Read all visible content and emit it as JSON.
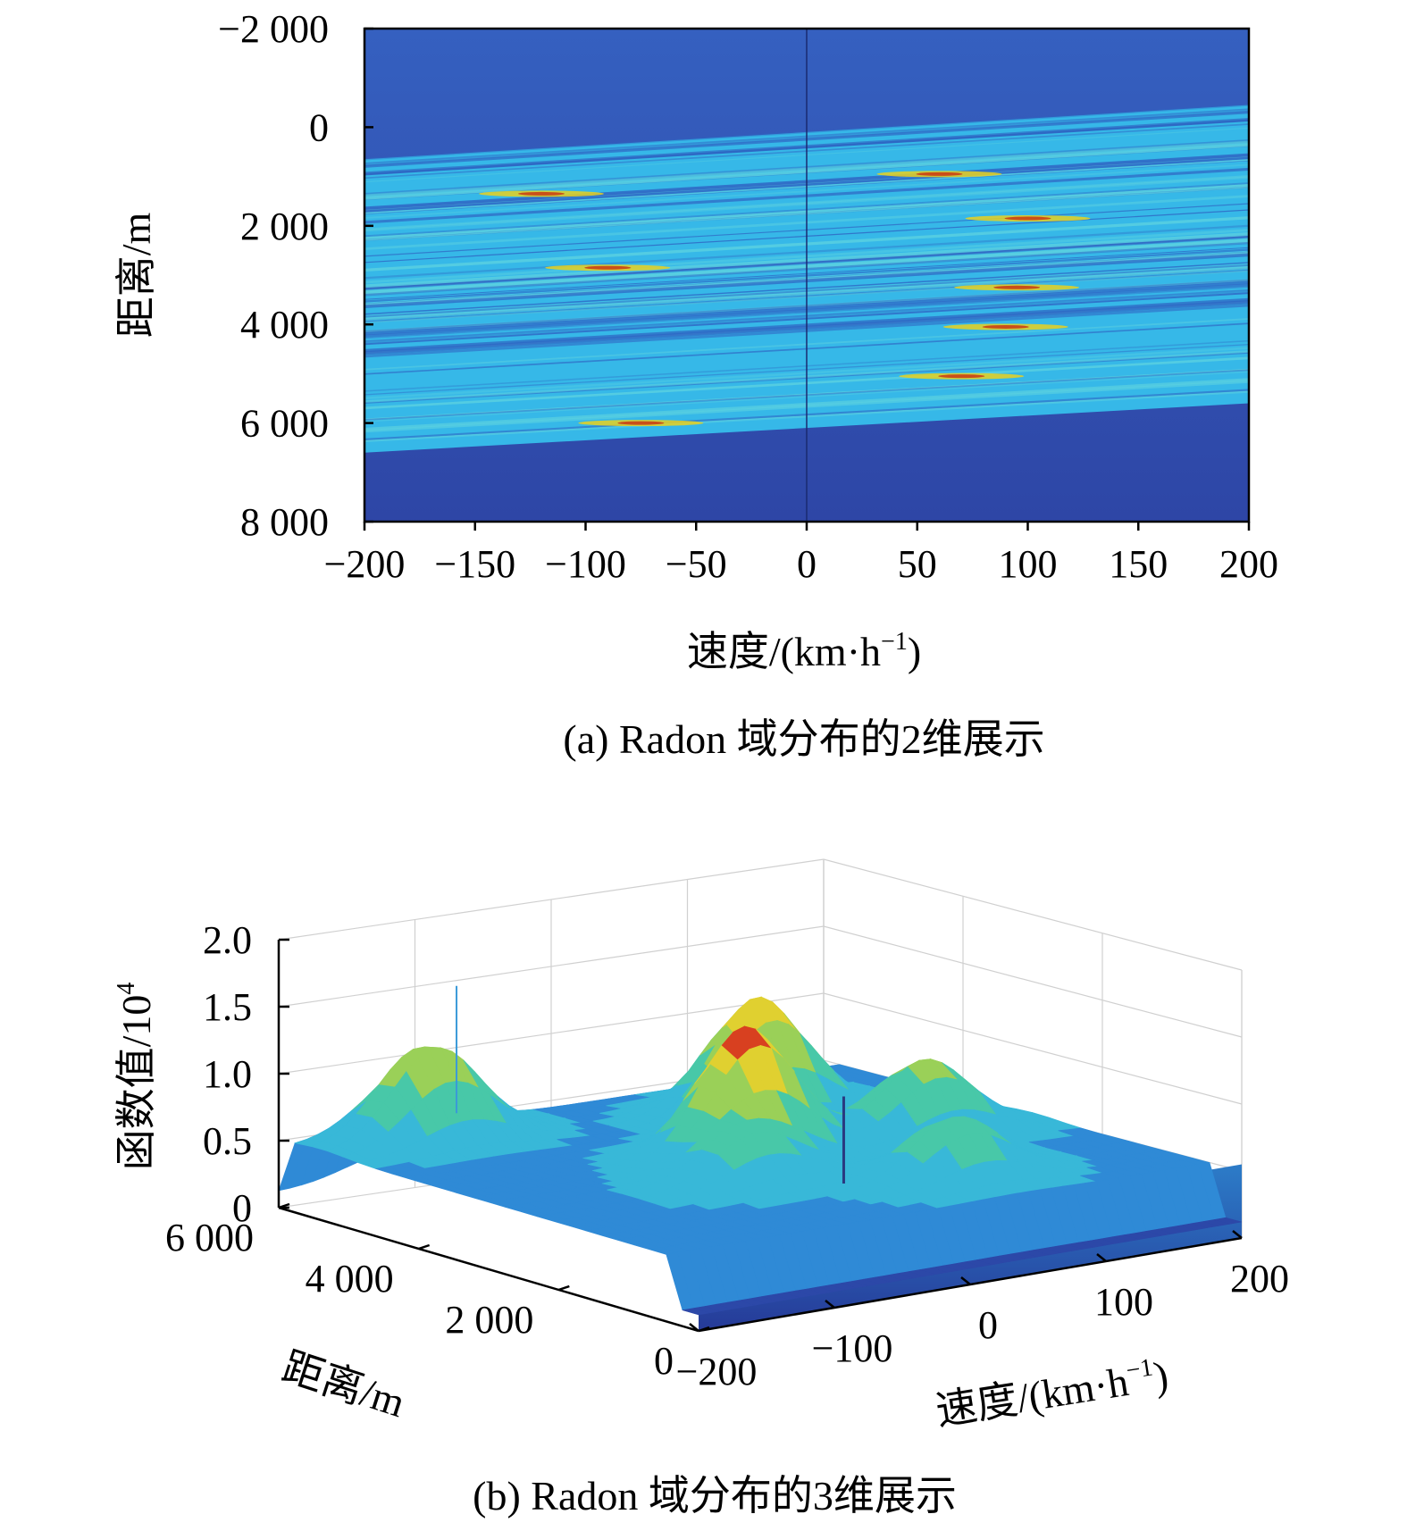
{
  "chart_data": [
    {
      "type": "heatmap",
      "caption": "(a) Radon 域分布的2维展示",
      "xlabel": "速度/(km·h",
      "xlabel_sup": "−1",
      "xlabel_end": ")",
      "ylabel": "距离/m",
      "xlim": [
        -200,
        200
      ],
      "ylim": [
        -2000,
        8000
      ],
      "y_inverted": true,
      "xticks": [
        -200,
        -150,
        -100,
        -50,
        0,
        50,
        100,
        150,
        200
      ],
      "xtick_labels": [
        "−200",
        "−150",
        "−100",
        "−50",
        "0",
        "50",
        "100",
        "150",
        "200"
      ],
      "yticks": [
        -2000,
        0,
        2000,
        4000,
        6000,
        8000
      ],
      "ytick_labels": [
        "−2 000",
        "0",
        "2 000",
        "4 000",
        "6 000",
        "8 000"
      ],
      "band": {
        "left_top": 650,
        "left_bottom": 6600,
        "right_top": -450,
        "right_bottom": 5600
      },
      "hotspots": [
        {
          "v": -75,
          "d": 6000
        },
        {
          "v": -120,
          "d": 1350
        },
        {
          "v": -90,
          "d": 2850
        },
        {
          "v": 100,
          "d": 1850
        },
        {
          "v": 95,
          "d": 3250
        },
        {
          "v": 90,
          "d": 4050
        },
        {
          "v": 60,
          "d": 950
        },
        {
          "v": 70,
          "d": 5050
        }
      ],
      "colors": {
        "background": "#3048a8",
        "band": "#36b8e8",
        "hot": "#e8d020",
        "peak": "#c83010"
      }
    },
    {
      "type": "surface3d",
      "caption": "(b) Radon 域分布的3维展示",
      "zlabel": "函数值/10",
      "zlabel_sup": "4",
      "xlabel": "速度/(km·h",
      "xlabel_sup": "−1",
      "xlabel_end": ")",
      "ylabel": "距离/m",
      "zticks": [
        0,
        0.5,
        1.0,
        1.5,
        2.0
      ],
      "ztick_labels": [
        "0",
        "0.5",
        "1.0",
        "1.5",
        "2.0"
      ],
      "zlim": [
        0,
        2.0
      ],
      "xticks": [
        -200,
        -100,
        0,
        100,
        200
      ],
      "xtick_labels": [
        "−200",
        "−100",
        "0",
        "100",
        "200"
      ],
      "yticks": [
        6000,
        4000,
        2000,
        0
      ],
      "ytick_labels": [
        "6 000",
        "4 000",
        "2 000",
        "0"
      ],
      "peaks": [
        {
          "v": -120,
          "d": 5400,
          "z": 1.2
        },
        {
          "v": 80,
          "d": 4600,
          "z": 1.35
        },
        {
          "v": 0,
          "d": 3200,
          "z": 1.45
        },
        {
          "v": 120,
          "d": 3000,
          "z": 1.05
        },
        {
          "v": -40,
          "d": 2400,
          "z": 0.85
        },
        {
          "v": 60,
          "d": 1400,
          "z": 0.95
        }
      ],
      "plateau": 0.5
    }
  ]
}
